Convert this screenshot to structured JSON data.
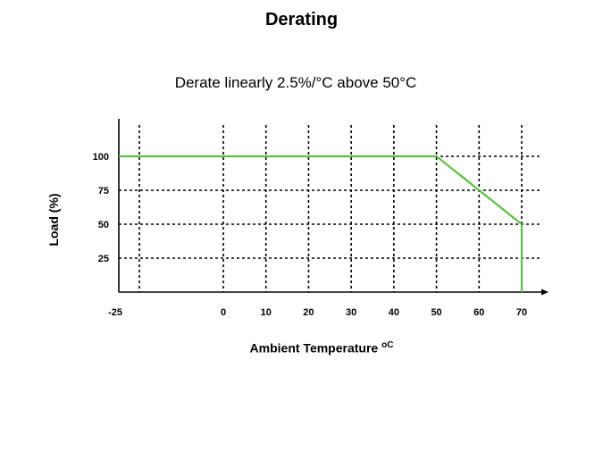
{
  "page": {
    "title": "Derating",
    "subtitle": "Derate linearly 2.5%/°C above 50°C"
  },
  "chart_data": {
    "type": "line",
    "title": "Derating",
    "subtitle": "Derate linearly 2.5%/°C above 50°C",
    "xlabel_main": "Ambient Temperature ",
    "xlabel_unit": "oC",
    "ylabel": "Load (%)",
    "x_ticks": [
      -25,
      0,
      10,
      20,
      30,
      40,
      50,
      60,
      70
    ],
    "x_tick_labels": [
      "-25",
      "0",
      "10",
      "20",
      "30",
      "40",
      "50",
      "60",
      "70"
    ],
    "y_ticks": [
      25,
      50,
      75,
      100
    ],
    "y_tick_labels": [
      "25",
      "50",
      "75",
      "100"
    ],
    "grid": true,
    "series": [
      {
        "color": "#5cc040",
        "x": [
          -25,
          50,
          70,
          70
        ],
        "y": [
          100,
          100,
          50,
          0
        ]
      }
    ]
  }
}
